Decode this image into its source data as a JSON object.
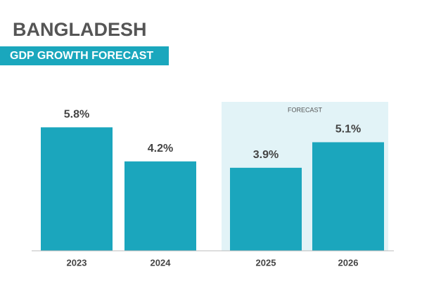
{
  "chart_data": {
    "type": "bar",
    "title": "BANGLADESH",
    "subtitle": "GDP GROWTH FORECAST",
    "categories": [
      "2023",
      "2024",
      "2025",
      "2026"
    ],
    "values": [
      5.8,
      4.2,
      3.9,
      5.1
    ],
    "value_labels": [
      "5.8%",
      "4.2%",
      "3.9%",
      "5.1%"
    ],
    "color": "#1ba6bd",
    "forecast": {
      "label": "FORECAST",
      "from": "2025",
      "color": "#e2f3f7"
    }
  }
}
